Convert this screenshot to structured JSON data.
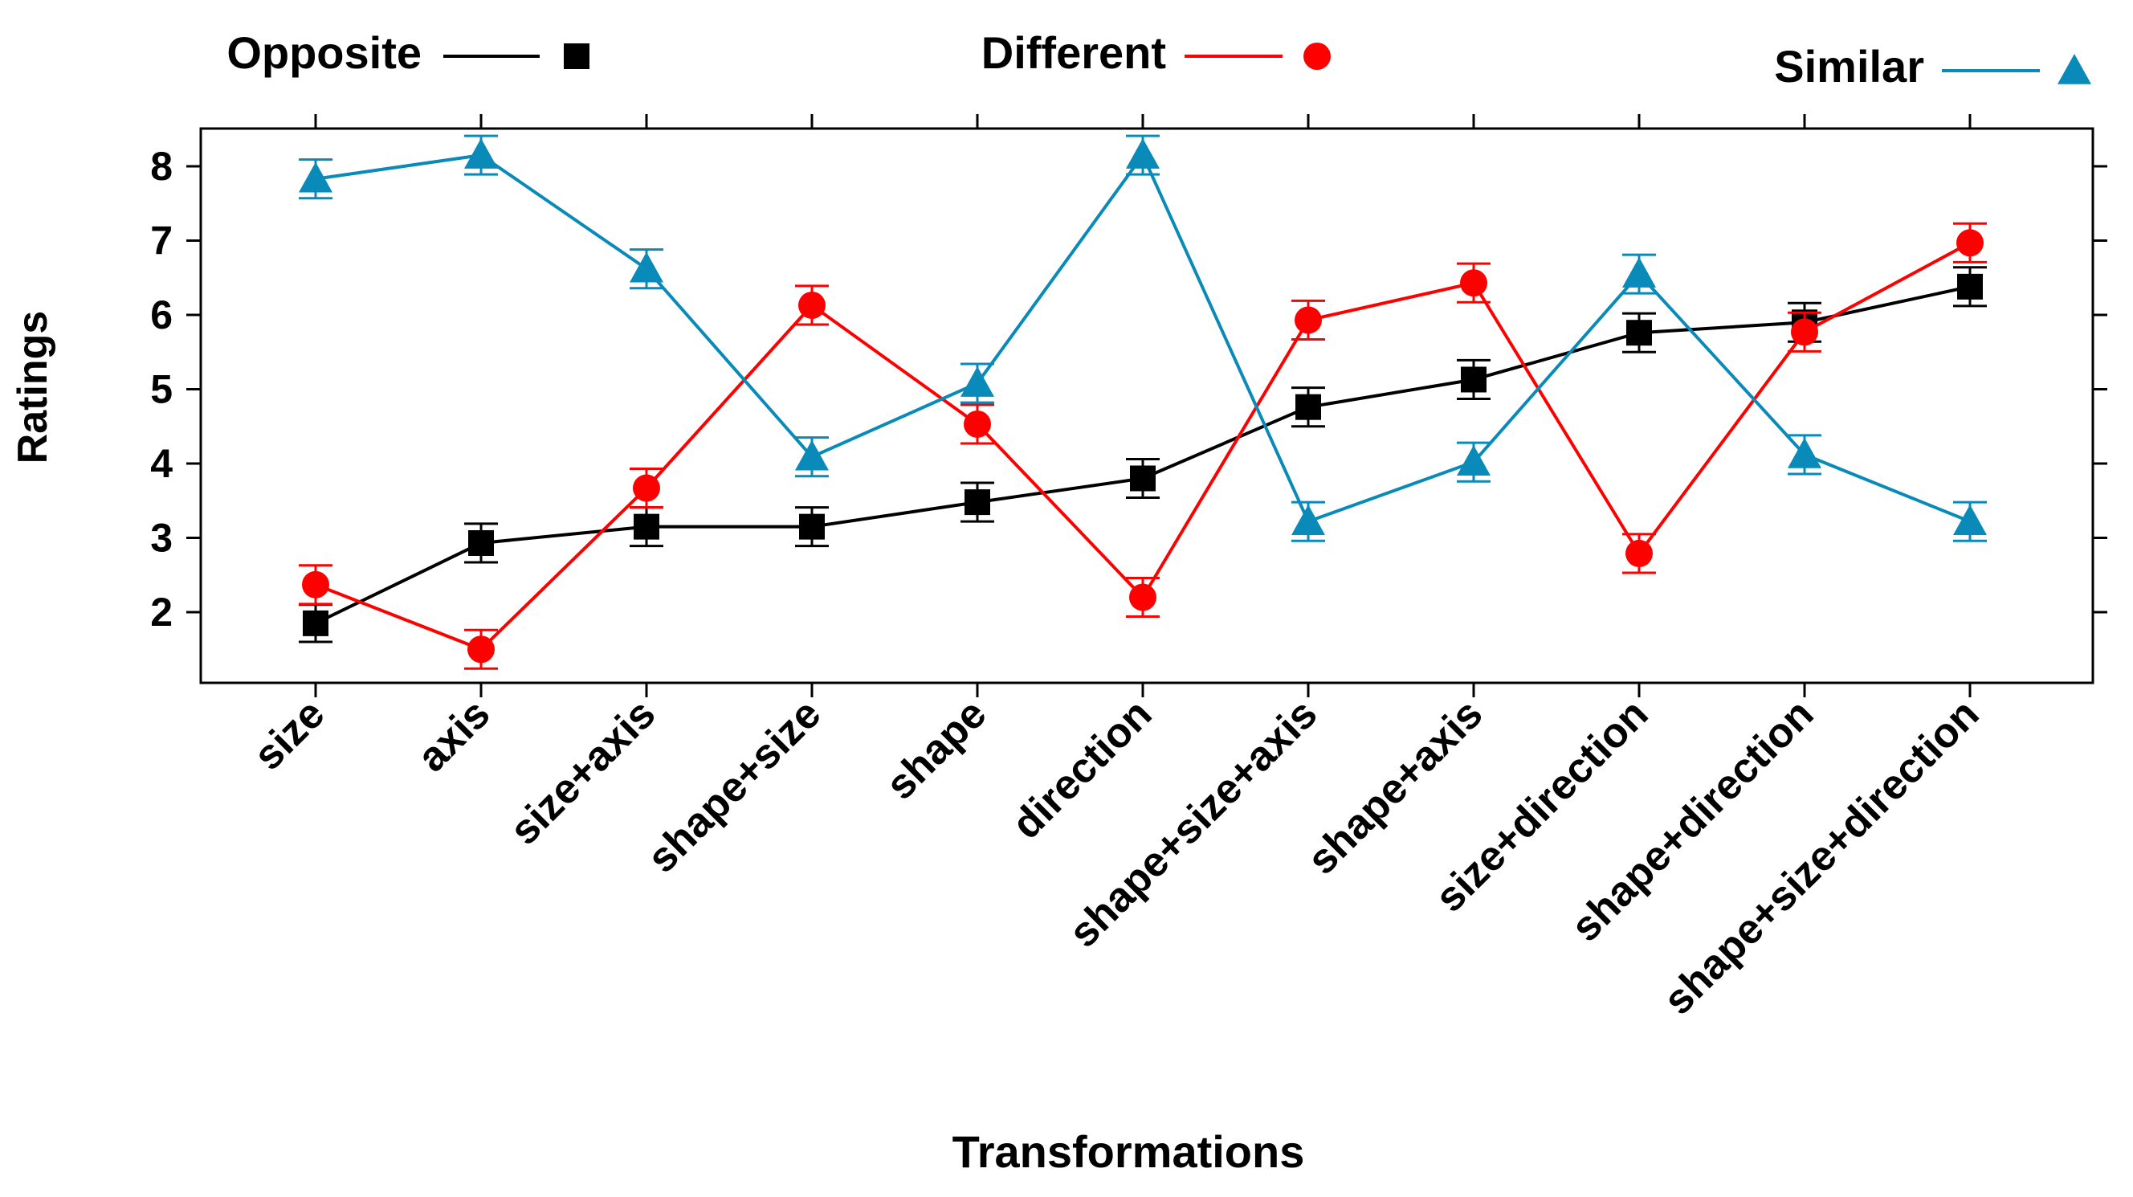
{
  "chart_data": {
    "type": "line",
    "xlabel": "Transformations",
    "ylabel": "Ratings",
    "ylim": [
      1.0,
      8.5
    ],
    "yticks": [
      2,
      3,
      4,
      5,
      6,
      7,
      8
    ],
    "categories": [
      "size",
      "axis",
      "size+axis",
      "shape+size",
      "shape",
      "direction",
      "shape+size+axis",
      "shape+axis",
      "size+direction",
      "shape+direction",
      "shape+size+direction"
    ],
    "series": [
      {
        "name": "Opposite",
        "color": "#000000",
        "marker": "square",
        "values": [
          1.85,
          2.93,
          3.15,
          3.15,
          3.48,
          3.8,
          4.76,
          5.13,
          5.76,
          5.9,
          6.38
        ],
        "err": [
          0.25,
          0.26,
          0.26,
          0.26,
          0.26,
          0.26,
          0.26,
          0.26,
          0.26,
          0.26,
          0.26
        ]
      },
      {
        "name": "Different",
        "color": "#ff0000",
        "marker": "circle",
        "values": [
          2.37,
          1.5,
          3.67,
          6.13,
          4.53,
          2.2,
          5.93,
          6.43,
          2.79,
          5.77,
          6.97
        ],
        "err": [
          0.26,
          0.26,
          0.26,
          0.26,
          0.26,
          0.26,
          0.26,
          0.26,
          0.26,
          0.26,
          0.26
        ]
      },
      {
        "name": "Similar",
        "color": "#0a8ab8",
        "marker": "triangle",
        "values": [
          7.83,
          8.15,
          6.62,
          4.09,
          5.08,
          8.15,
          3.22,
          4.02,
          6.55,
          4.12,
          3.22
        ],
        "err": [
          0.26,
          0.26,
          0.26,
          0.26,
          0.26,
          0.26,
          0.26,
          0.26,
          0.26,
          0.26,
          0.26
        ]
      }
    ]
  }
}
